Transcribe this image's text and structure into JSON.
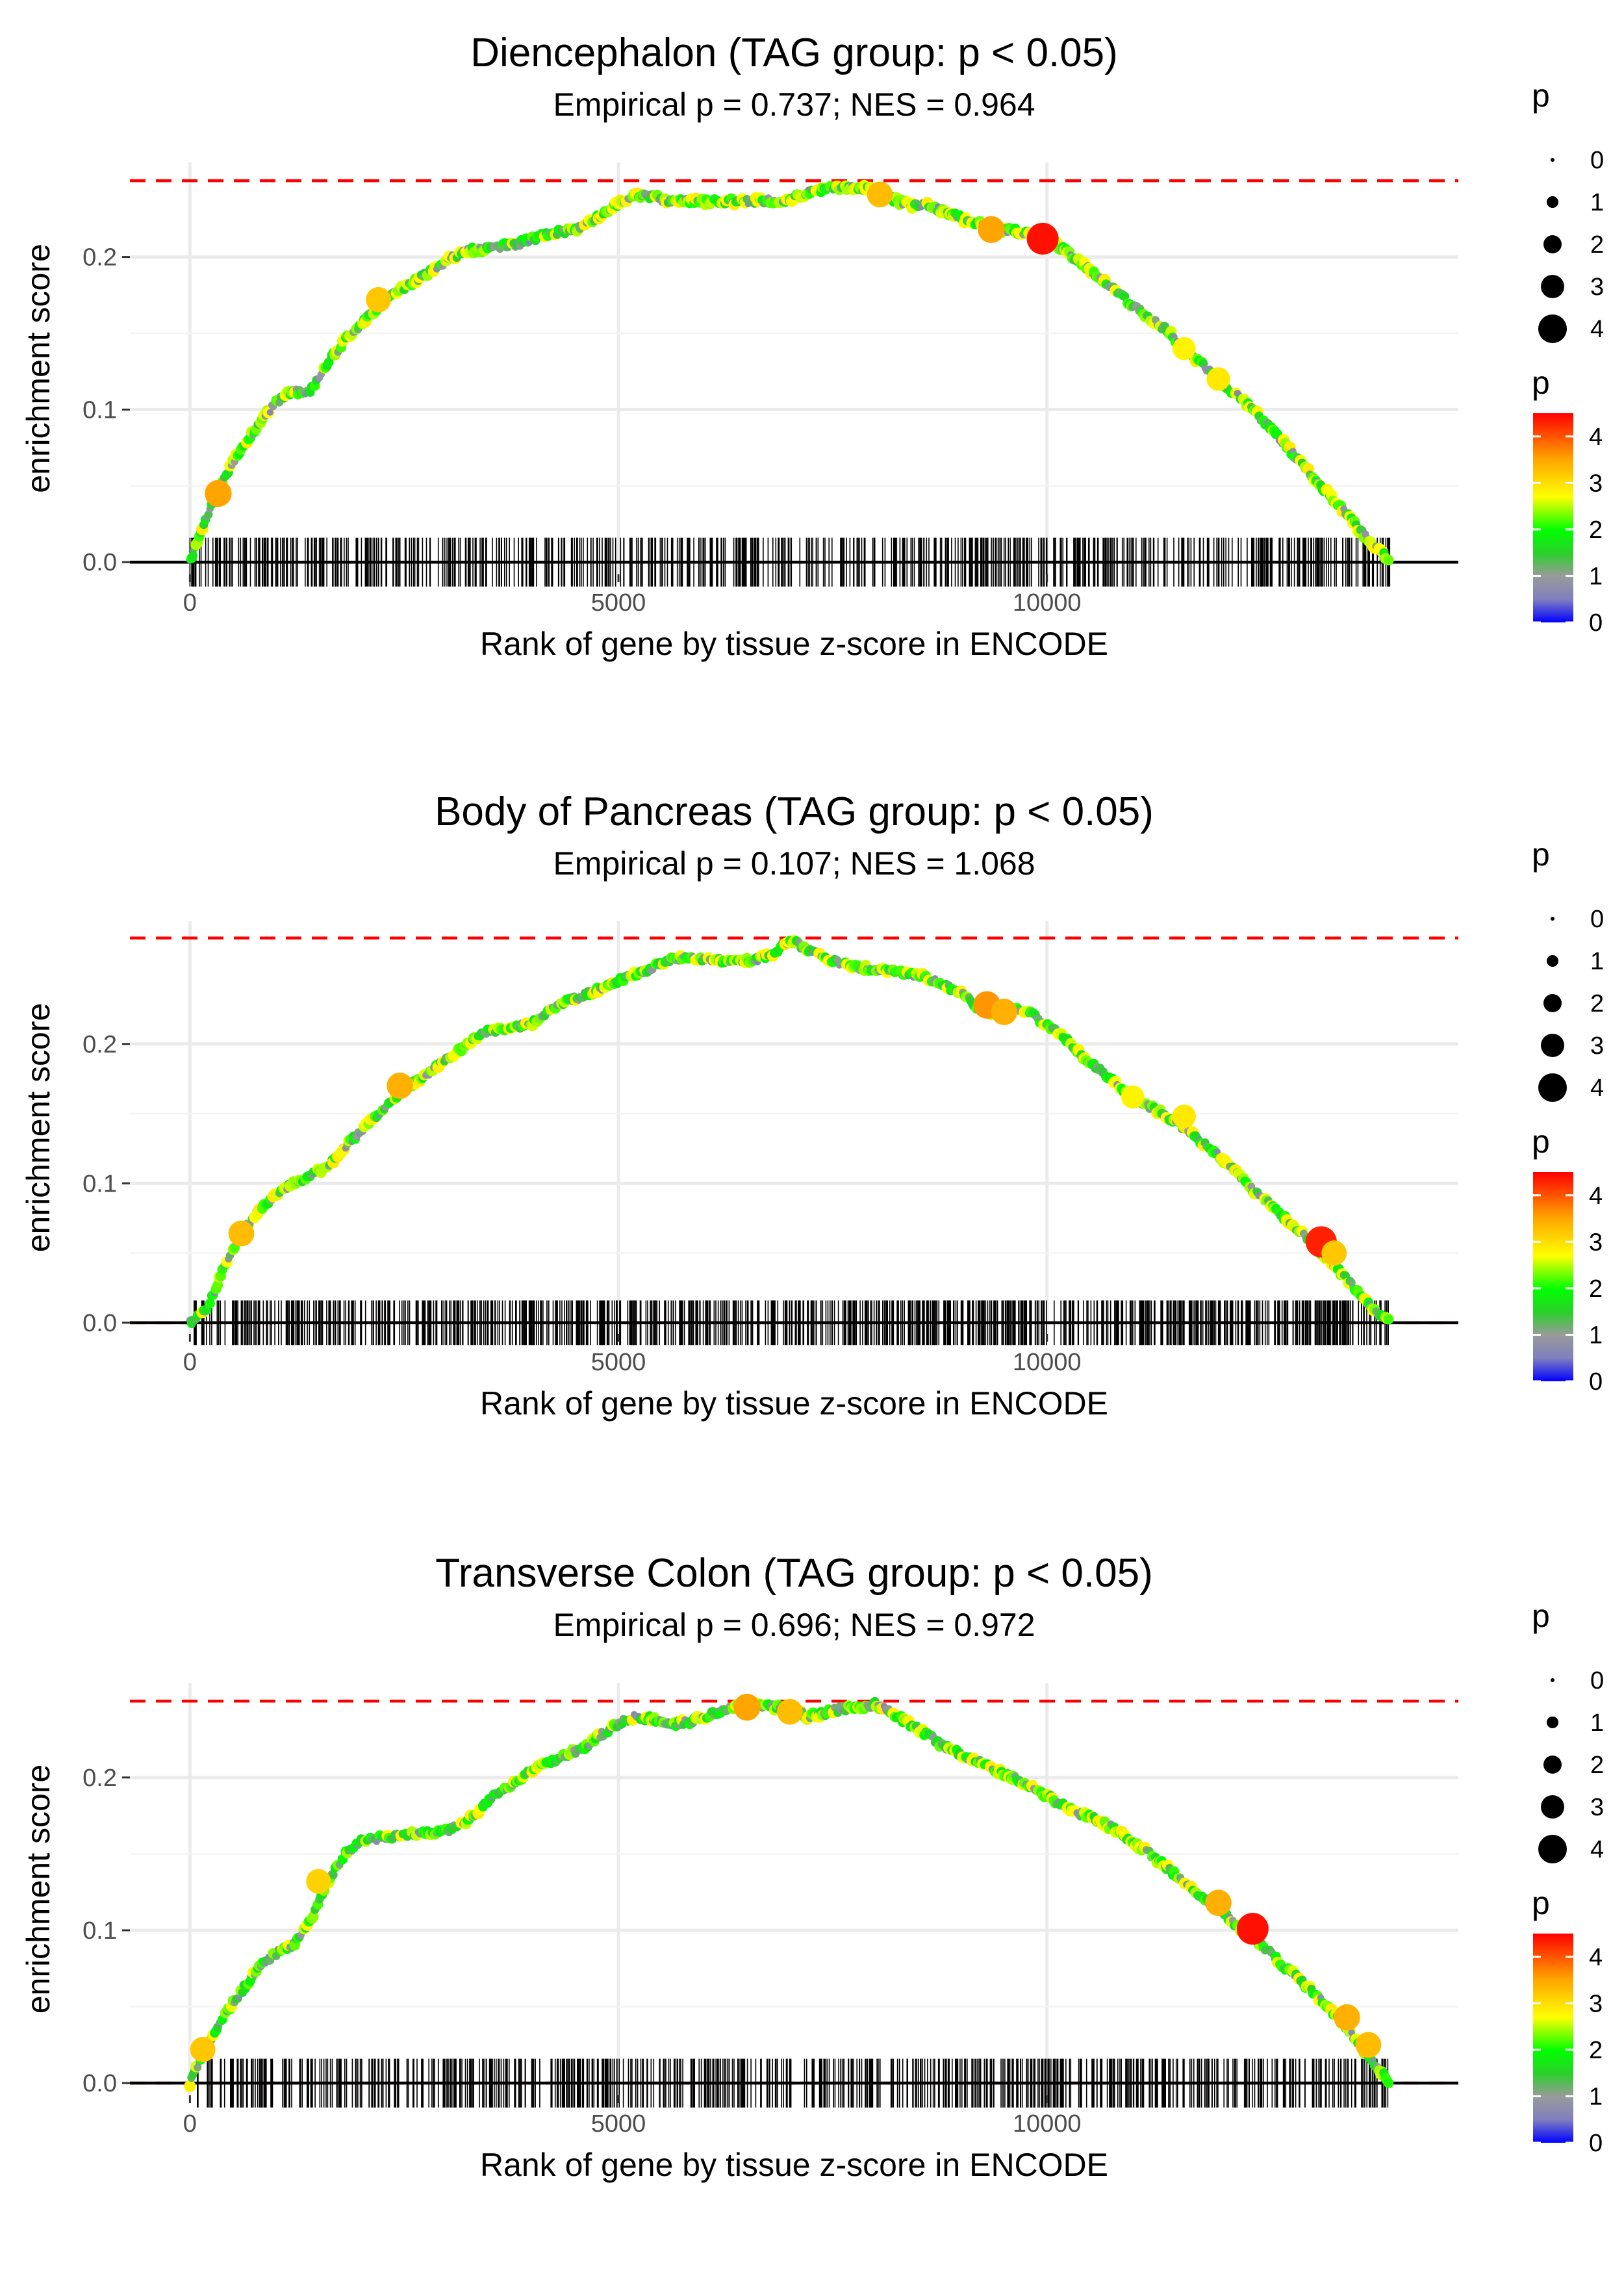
{
  "chart_data": [
    {
      "type": "line",
      "title": "Diencephalon (TAG group: p < 0.05)",
      "subtitle": "Empirical p = 0.737; NES = 0.964",
      "xlabel": "Rank of gene by tissue z-score in ENCODE",
      "ylabel": "enrichment score",
      "xlim": [
        -700,
        14800
      ],
      "ylim": [
        -0.008,
        0.262
      ],
      "x_ticks": [
        0,
        5000,
        10000
      ],
      "x_tick_labels": [
        "0",
        "5000",
        "10000"
      ],
      "y_ticks": [
        0.0,
        0.1,
        0.2
      ],
      "y_tick_labels": [
        "0.0",
        "0.1",
        "0.2"
      ],
      "max_es_line": 0.25,
      "min_es_line": 0.0,
      "x_max": 14000,
      "curve": {
        "x": [
          0,
          200,
          400,
          600,
          800,
          1000,
          1200,
          1400,
          1600,
          1800,
          2000,
          2200,
          2400,
          2600,
          2800,
          3000,
          3200,
          3400,
          3600,
          3800,
          4000,
          4200,
          4400,
          4600,
          4800,
          5000,
          5200,
          5400,
          5600,
          5800,
          6000,
          6200,
          6400,
          6600,
          6800,
          7000,
          7200,
          7400,
          7600,
          7800,
          8000,
          8200,
          8400,
          8600,
          8800,
          9000,
          9200,
          9400,
          9600,
          9800,
          10000,
          10200,
          10400,
          10600,
          10800,
          11000,
          11200,
          11400,
          11600,
          11800,
          12000,
          12200,
          12400,
          12600,
          12800,
          13000,
          13200,
          13400,
          13600,
          13800,
          14000
        ],
        "y": [
          0.0,
          0.03,
          0.055,
          0.075,
          0.09,
          0.105,
          0.112,
          0.112,
          0.13,
          0.145,
          0.155,
          0.168,
          0.177,
          0.183,
          0.19,
          0.198,
          0.204,
          0.205,
          0.207,
          0.208,
          0.212,
          0.215,
          0.217,
          0.22,
          0.228,
          0.235,
          0.24,
          0.24,
          0.236,
          0.237,
          0.236,
          0.237,
          0.236,
          0.237,
          0.237,
          0.238,
          0.242,
          0.245,
          0.246,
          0.246,
          0.243,
          0.238,
          0.234,
          0.234,
          0.23,
          0.225,
          0.222,
          0.218,
          0.217,
          0.215,
          0.212,
          0.205,
          0.196,
          0.187,
          0.178,
          0.168,
          0.16,
          0.152,
          0.14,
          0.13,
          0.12,
          0.11,
          0.1,
          0.088,
          0.076,
          0.062,
          0.05,
          0.038,
          0.024,
          0.012,
          0.0
        ]
      },
      "highlight_points": [
        {
          "x": 330,
          "y": 0.045,
          "p": 3.5
        },
        {
          "x": 2200,
          "y": 0.172,
          "p": 3.2
        },
        {
          "x": 8050,
          "y": 0.241,
          "p": 3.3
        },
        {
          "x": 9350,
          "y": 0.218,
          "p": 3.5
        },
        {
          "x": 9950,
          "y": 0.212,
          "p": 4.4
        },
        {
          "x": 11600,
          "y": 0.14,
          "p": 2.8
        },
        {
          "x": 12000,
          "y": 0.12,
          "p": 2.9
        }
      ],
      "legend": {
        "size_title": "p",
        "size_labels": [
          "0",
          "1",
          "2",
          "3",
          "4"
        ],
        "color_title": "p",
        "color_labels": [
          "0",
          "1",
          "2",
          "3",
          "4"
        ]
      }
    },
    {
      "type": "line",
      "title": "Body of Pancreas (TAG group: p < 0.05)",
      "subtitle": "Empirical p = 0.107; NES = 1.068",
      "xlabel": "Rank of gene by tissue z-score in ENCODE",
      "ylabel": "enrichment score",
      "xlim": [
        -700,
        14800
      ],
      "ylim": [
        -0.008,
        0.288
      ],
      "x_ticks": [
        0,
        5000,
        10000
      ],
      "x_tick_labels": [
        "0",
        "5000",
        "10000"
      ],
      "y_ticks": [
        0.0,
        0.1,
        0.2
      ],
      "y_tick_labels": [
        "0.0",
        "0.1",
        "0.2"
      ],
      "max_es_line": 0.276,
      "min_es_line": 0.0,
      "x_max": 14000,
      "curve": {
        "x": [
          0,
          200,
          400,
          600,
          800,
          1000,
          1200,
          1400,
          1600,
          1800,
          2000,
          2200,
          2400,
          2600,
          2800,
          3000,
          3200,
          3400,
          3600,
          3800,
          4000,
          4200,
          4400,
          4600,
          4800,
          5000,
          5200,
          5400,
          5600,
          5800,
          6000,
          6200,
          6400,
          6600,
          6800,
          7000,
          7200,
          7400,
          7600,
          7800,
          8000,
          8200,
          8400,
          8600,
          8800,
          9000,
          9200,
          9400,
          9600,
          9800,
          10000,
          10200,
          10400,
          10600,
          10800,
          11000,
          11200,
          11400,
          11600,
          11800,
          12000,
          12200,
          12400,
          12600,
          12800,
          13000,
          13200,
          13400,
          13600,
          13800,
          14000
        ],
        "y": [
          0.0,
          0.01,
          0.04,
          0.065,
          0.08,
          0.092,
          0.1,
          0.105,
          0.112,
          0.125,
          0.138,
          0.15,
          0.163,
          0.172,
          0.18,
          0.19,
          0.198,
          0.208,
          0.21,
          0.212,
          0.215,
          0.225,
          0.23,
          0.235,
          0.24,
          0.245,
          0.25,
          0.255,
          0.26,
          0.262,
          0.26,
          0.26,
          0.259,
          0.26,
          0.265,
          0.275,
          0.268,
          0.262,
          0.258,
          0.255,
          0.254,
          0.252,
          0.25,
          0.248,
          0.242,
          0.236,
          0.226,
          0.222,
          0.225,
          0.222,
          0.214,
          0.205,
          0.192,
          0.182,
          0.172,
          0.162,
          0.155,
          0.148,
          0.14,
          0.13,
          0.12,
          0.108,
          0.095,
          0.085,
          0.074,
          0.063,
          0.05,
          0.038,
          0.024,
          0.01,
          0.0
        ]
      },
      "highlight_points": [
        {
          "x": 600,
          "y": 0.064,
          "p": 3.3
        },
        {
          "x": 2450,
          "y": 0.17,
          "p": 3.4
        },
        {
          "x": 9300,
          "y": 0.228,
          "p": 3.6
        },
        {
          "x": 9500,
          "y": 0.223,
          "p": 3.4
        },
        {
          "x": 11000,
          "y": 0.162,
          "p": 2.8
        },
        {
          "x": 11600,
          "y": 0.148,
          "p": 2.9
        },
        {
          "x": 13200,
          "y": 0.058,
          "p": 4.3
        },
        {
          "x": 13350,
          "y": 0.05,
          "p": 3.2
        }
      ],
      "legend": {
        "size_title": "p",
        "size_labels": [
          "0",
          "1",
          "2",
          "3",
          "4"
        ],
        "color_title": "p",
        "color_labels": [
          "0",
          "1",
          "2",
          "3",
          "4"
        ]
      }
    },
    {
      "type": "line",
      "title": "Transverse Colon (TAG group: p < 0.05)",
      "subtitle": "Empirical p = 0.696; NES = 0.972",
      "xlabel": "Rank of gene by tissue z-score in ENCODE",
      "ylabel": "enrichment score",
      "xlim": [
        -700,
        14800
      ],
      "ylim": [
        -0.008,
        0.262
      ],
      "x_ticks": [
        0,
        5000,
        10000
      ],
      "x_tick_labels": [
        "0",
        "5000",
        "10000"
      ],
      "y_ticks": [
        0.0,
        0.1,
        0.2
      ],
      "y_tick_labels": [
        "0.0",
        "0.1",
        "0.2"
      ],
      "max_es_line": 0.25,
      "min_es_line": 0.0,
      "x_max": 14000,
      "curve": {
        "x": [
          0,
          200,
          400,
          600,
          800,
          1000,
          1200,
          1400,
          1600,
          1800,
          2000,
          2200,
          2400,
          2600,
          2800,
          3000,
          3200,
          3400,
          3600,
          3800,
          4000,
          4200,
          4400,
          4600,
          4800,
          5000,
          5200,
          5400,
          5600,
          5800,
          6000,
          6200,
          6400,
          6600,
          6800,
          7000,
          7200,
          7400,
          7600,
          7800,
          8000,
          8200,
          8400,
          8600,
          8800,
          9000,
          9200,
          9400,
          9600,
          9800,
          10000,
          10200,
          10400,
          10600,
          10800,
          11000,
          11200,
          11400,
          11600,
          11800,
          12000,
          12200,
          12400,
          12600,
          12800,
          13000,
          13200,
          13400,
          13600,
          13800,
          14000
        ],
        "y": [
          0.0,
          0.025,
          0.045,
          0.06,
          0.075,
          0.085,
          0.09,
          0.105,
          0.13,
          0.15,
          0.158,
          0.16,
          0.162,
          0.163,
          0.164,
          0.165,
          0.17,
          0.18,
          0.19,
          0.198,
          0.205,
          0.21,
          0.215,
          0.22,
          0.228,
          0.235,
          0.24,
          0.238,
          0.235,
          0.236,
          0.24,
          0.243,
          0.247,
          0.247,
          0.246,
          0.245,
          0.24,
          0.242,
          0.245,
          0.246,
          0.248,
          0.242,
          0.235,
          0.228,
          0.22,
          0.215,
          0.21,
          0.205,
          0.2,
          0.194,
          0.188,
          0.182,
          0.176,
          0.172,
          0.166,
          0.158,
          0.15,
          0.141,
          0.132,
          0.122,
          0.114,
          0.104,
          0.095,
          0.085,
          0.075,
          0.065,
          0.054,
          0.042,
          0.028,
          0.014,
          0.0
        ]
      },
      "highlight_points": [
        {
          "x": 150,
          "y": 0.022,
          "p": 3.2
        },
        {
          "x": 1500,
          "y": 0.132,
          "p": 3.1
        },
        {
          "x": 6500,
          "y": 0.246,
          "p": 3.5
        },
        {
          "x": 7000,
          "y": 0.243,
          "p": 3.3
        },
        {
          "x": 12000,
          "y": 0.118,
          "p": 3.4
        },
        {
          "x": 12400,
          "y": 0.101,
          "p": 4.4
        },
        {
          "x": 13500,
          "y": 0.043,
          "p": 3.4
        },
        {
          "x": 13750,
          "y": 0.025,
          "p": 3.3
        }
      ],
      "legend": {
        "size_title": "p",
        "size_labels": [
          "0",
          "1",
          "2",
          "3",
          "4"
        ],
        "color_title": "p",
        "color_labels": [
          "0",
          "1",
          "2",
          "3",
          "4"
        ]
      }
    }
  ]
}
